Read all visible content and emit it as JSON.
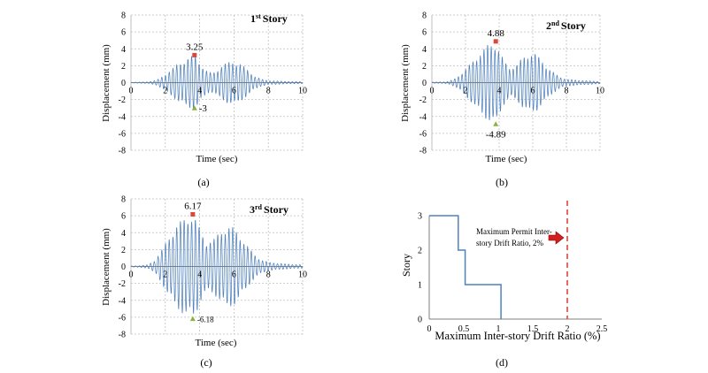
{
  "colors": {
    "trace": "#4F81BD",
    "peak_marker": "#E0453A",
    "trough_marker": "#8DB23C",
    "limit_line": "#E0453A",
    "arrow": "#D02020",
    "grid": "#BFBFBF",
    "axis": "#000000"
  },
  "chart_data": [
    {
      "type": "line",
      "panel": "(a)",
      "story_label": {
        "num": "1",
        "sup": "st",
        "text": "Story"
      },
      "xlabel": "Time (sec)",
      "ylabel": "Displacement (mm)",
      "xlim": [
        0,
        10
      ],
      "ylim": [
        -8,
        8
      ],
      "xticks": [
        "0",
        "2",
        "4",
        "6",
        "8",
        "10"
      ],
      "yticks": [
        "8",
        "6",
        "4",
        "2",
        "0",
        "-2",
        "-4",
        "-6",
        "-8"
      ],
      "grid": true,
      "envelope": [
        [
          0,
          0.04
        ],
        [
          0.5,
          0.06
        ],
        [
          1,
          0.1
        ],
        [
          1.5,
          0.3
        ],
        [
          1.8,
          0.7
        ],
        [
          2.1,
          1.2
        ],
        [
          2.4,
          1.6
        ],
        [
          2.7,
          2.2
        ],
        [
          3,
          2.6
        ],
        [
          3.3,
          2.9
        ],
        [
          3.6,
          3.2
        ],
        [
          3.7,
          3.25
        ],
        [
          3.9,
          2.8
        ],
        [
          4.2,
          1.8
        ],
        [
          4.5,
          1.2
        ],
        [
          4.8,
          1.2
        ],
        [
          5.2,
          1.9
        ],
        [
          5.6,
          2.4
        ],
        [
          6,
          2.6
        ],
        [
          6.4,
          2.2
        ],
        [
          6.8,
          1.5
        ],
        [
          7.2,
          0.8
        ],
        [
          7.6,
          0.4
        ],
        [
          8,
          0.25
        ],
        [
          9,
          0.15
        ],
        [
          10,
          0.1
        ]
      ],
      "series": [
        {
          "points": [
            [
              3.7,
              3.25
            ],
            [
              3.7,
              -3
            ]
          ]
        }
      ],
      "peak": {
        "x": 3.7,
        "y": 3.25,
        "label": "3.25"
      },
      "trough": {
        "x": 3.7,
        "y": -3,
        "label": "-3"
      }
    },
    {
      "type": "line",
      "panel": "(b)",
      "story_label": {
        "num": "2",
        "sup": "nd",
        "text": "Story"
      },
      "xlabel": "Time (sec)",
      "ylabel": "Displacement (mm)",
      "xlim": [
        0,
        10
      ],
      "ylim": [
        -8,
        8
      ],
      "xticks": [
        "0",
        "2",
        "4",
        "6",
        "8",
        "10"
      ],
      "yticks": [
        "8",
        "6",
        "4",
        "2",
        "0",
        "-2",
        "-4",
        "-6",
        "-8"
      ],
      "grid": true,
      "envelope": [
        [
          0,
          0.05
        ],
        [
          0.5,
          0.08
        ],
        [
          1,
          0.15
        ],
        [
          1.4,
          0.5
        ],
        [
          1.8,
          1.2
        ],
        [
          2.2,
          2
        ],
        [
          2.6,
          3
        ],
        [
          3,
          3.8
        ],
        [
          3.3,
          4.5
        ],
        [
          3.6,
          4.8
        ],
        [
          3.8,
          4.88
        ],
        [
          4,
          3.8
        ],
        [
          4.3,
          2.6
        ],
        [
          4.6,
          1.8
        ],
        [
          5,
          2
        ],
        [
          5.4,
          3
        ],
        [
          5.8,
          3.6
        ],
        [
          6.2,
          3.4
        ],
        [
          6.6,
          2.5
        ],
        [
          7,
          1.6
        ],
        [
          7.5,
          0.8
        ],
        [
          8,
          0.4
        ],
        [
          9,
          0.25
        ],
        [
          10,
          0.15
        ]
      ],
      "series": [
        {
          "points": [
            [
              3.8,
              4.88
            ],
            [
              3.8,
              -4.89
            ]
          ]
        }
      ],
      "peak": {
        "x": 3.8,
        "y": 4.88,
        "label": "4.88"
      },
      "trough": {
        "x": 3.8,
        "y": -4.89,
        "label": "-4.89"
      }
    },
    {
      "type": "line",
      "panel": "(c)",
      "story_label": {
        "num": "3",
        "sup": "rd",
        "text": "Story"
      },
      "xlabel": "Time (sec)",
      "ylabel": "Displacement (mm)",
      "xlim": [
        0,
        10
      ],
      "ylim": [
        -8,
        8
      ],
      "xticks": [
        "0",
        "2",
        "4",
        "6",
        "8",
        "10"
      ],
      "yticks": [
        "8",
        "6",
        "4",
        "2",
        "0",
        "-2",
        "-4",
        "-6",
        "-8"
      ],
      "grid": true,
      "envelope": [
        [
          0,
          0.05
        ],
        [
          0.5,
          0.1
        ],
        [
          1,
          0.2
        ],
        [
          1.4,
          0.8
        ],
        [
          1.8,
          2
        ],
        [
          2.2,
          3.5
        ],
        [
          2.6,
          4.8
        ],
        [
          3,
          5.6
        ],
        [
          3.3,
          6
        ],
        [
          3.6,
          6.17
        ],
        [
          3.8,
          5.5
        ],
        [
          4.1,
          4
        ],
        [
          4.4,
          3
        ],
        [
          4.8,
          3.2
        ],
        [
          5.2,
          4.2
        ],
        [
          5.6,
          4.9
        ],
        [
          6,
          4.6
        ],
        [
          6.4,
          3.6
        ],
        [
          6.8,
          2.4
        ],
        [
          7.2,
          1.4
        ],
        [
          7.6,
          0.8
        ],
        [
          8,
          0.5
        ],
        [
          9,
          0.3
        ],
        [
          10,
          0.2
        ]
      ],
      "series": [
        {
          "points": [
            [
              3.6,
              6.17
            ],
            [
              3.6,
              -6.18
            ]
          ]
        }
      ],
      "peak": {
        "x": 3.6,
        "y": 6.17,
        "label": "6.17"
      },
      "trough": {
        "x": 3.6,
        "y": -6.18,
        "label": "-6.18"
      }
    },
    {
      "type": "line",
      "panel": "(d)",
      "xlabel": "Maximum Inter-story Drift Ratio (%)",
      "ylabel": "Story",
      "xlim": [
        0,
        2.5
      ],
      "ylim": [
        0,
        3
      ],
      "xticks": [
        "0",
        "0.5",
        "1",
        "1.5",
        "2",
        "2.5"
      ],
      "yticks": [
        "3",
        "2",
        "1",
        "0"
      ],
      "grid": false,
      "series": [
        {
          "points": [
            [
              0,
              3
            ],
            [
              0.42,
              3
            ],
            [
              0.42,
              2
            ],
            [
              0.52,
              2
            ],
            [
              0.52,
              1
            ],
            [
              1.04,
              1
            ],
            [
              1.04,
              0
            ]
          ]
        }
      ],
      "limit": {
        "x": 2,
        "annotation": "Maximum Permit Inter-story Drift Ratio, 2%"
      }
    }
  ]
}
